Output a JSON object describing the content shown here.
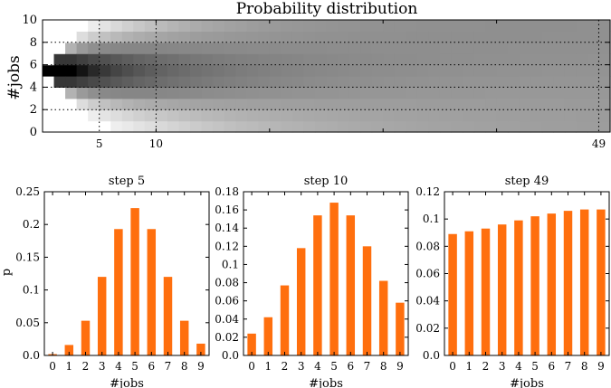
{
  "chart_data": [
    {
      "type": "heatmap",
      "title": "Probability distribution",
      "xlabel": "",
      "ylabel": "#jobs",
      "xlim": [
        0,
        50
      ],
      "ylim": [
        0,
        10
      ],
      "xticks": [
        5,
        10,
        49
      ],
      "yticks": [
        0,
        2,
        4,
        6,
        8,
        10
      ],
      "highlight_steps": [
        5,
        10,
        49
      ],
      "grid_levels": [
        2,
        4,
        6,
        8
      ],
      "initial_peak_jobs": 5.5,
      "colormap": "gray_r"
    },
    {
      "type": "bar",
      "title": "step 5",
      "xlabel": "#jobs",
      "ylabel": "p",
      "categories": [
        "0",
        "1",
        "2",
        "3",
        "4",
        "5",
        "6",
        "7",
        "8",
        "9"
      ],
      "values": [
        0.002,
        0.016,
        0.053,
        0.12,
        0.193,
        0.225,
        0.193,
        0.12,
        0.053,
        0.018
      ],
      "ylim": [
        0,
        0.25
      ],
      "yticks": [
        "0.0",
        "0.05",
        "0.1",
        "0.15",
        "0.2",
        "0.25"
      ],
      "color": "#ff6f0e"
    },
    {
      "type": "bar",
      "title": "step 10",
      "xlabel": "#jobs",
      "ylabel": "",
      "categories": [
        "0",
        "1",
        "2",
        "3",
        "4",
        "5",
        "6",
        "7",
        "8",
        "9"
      ],
      "values": [
        0.024,
        0.042,
        0.077,
        0.118,
        0.154,
        0.168,
        0.154,
        0.12,
        0.082,
        0.058
      ],
      "ylim": [
        0,
        0.18
      ],
      "yticks": [
        "0.0",
        "0.02",
        "0.04",
        "0.06",
        "0.08",
        "0.1",
        "0.12",
        "0.14",
        "0.16",
        "0.18"
      ],
      "color": "#ff6f0e"
    },
    {
      "type": "bar",
      "title": "step 49",
      "xlabel": "#jobs",
      "ylabel": "",
      "categories": [
        "0",
        "1",
        "2",
        "3",
        "4",
        "5",
        "6",
        "7",
        "8",
        "9"
      ],
      "values": [
        0.089,
        0.091,
        0.093,
        0.096,
        0.099,
        0.102,
        0.104,
        0.106,
        0.107,
        0.107
      ],
      "ylim": [
        0,
        0.12
      ],
      "yticks": [
        "0.0",
        "0.02",
        "0.04",
        "0.06",
        "0.08",
        "0.1",
        "0.12"
      ],
      "color": "#ff6f0e"
    }
  ]
}
